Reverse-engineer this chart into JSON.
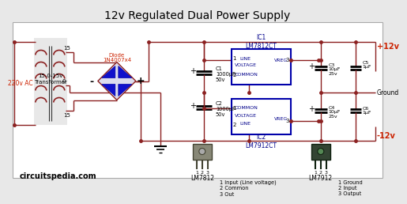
{
  "title": "12v Regulated Dual Power Supply",
  "bg_color": "#e8e8e8",
  "wire_color": "#8B2020",
  "ic_fill": "#0000aa",
  "ic_ec": "#00008B",
  "text_color": "#000000",
  "red_text": "#cc2200",
  "blue_text": "#00008B",
  "footer": "circuitspedia.com",
  "label_220": "220v AC",
  "label_transformer": "15-0-15v\nTransformer",
  "label_diode": "Diode\n1N4007x4",
  "label_15_top": "15",
  "label_15_bot": "15",
  "label_0": "0",
  "label_minus": "-",
  "label_plus": "+",
  "label_ic1_title": "IC1\nLM7812CT",
  "label_ic2_title": "IC2\nLM7912CT",
  "label_c1": "C1\n1000μF\n50v",
  "label_c2": "C2\n1000μF\n50v",
  "label_c3": "C3\n10μF\n25v",
  "label_c4": "C4\n10μF\n25v",
  "label_c5": "C5\n1μF",
  "label_c6": "C6\n1μF",
  "label_plus12": "+12v",
  "label_minus12": "-12v",
  "label_ground": "Ground",
  "label_lm7812_title": "LM7812",
  "label_lm7812_pins": "1 Input (Line voltage)\n2 Common\n3 Out",
  "label_lm7912_title": "LM7912",
  "label_lm7912_pins": "1 Ground\n2 Input\n3 Output",
  "ic1_line": "LINE",
  "ic1_voltage": "VOLTAGE",
  "ic1_common": "COMMON",
  "ic1_vreg": "VREG",
  "ic2_common": "COMMON",
  "ic2_voltage": "VOLTAGE",
  "ic2_line": "LINE",
  "ic2_vreg": "VREG",
  "pin1": "1",
  "pin2": "2",
  "pin3": "3"
}
